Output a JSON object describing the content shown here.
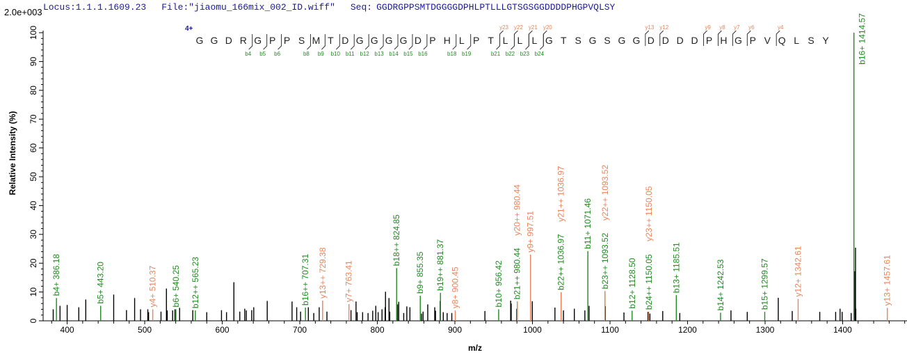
{
  "header": {
    "locus": "Locus:1.1.1.1609.23",
    "file": "File:\"jiaomu_166mix_002_ID.wiff\"",
    "seq_label": "Seq:",
    "seq": "GGDRGPPSMTDGGGGDPHLPTLLLGTSGSGGDDDDPHGPVQLSY"
  },
  "colors": {
    "b_ion": "#1f8a1f",
    "y_ion": "#e8845a",
    "unassigned": "#000000",
    "header": "#1a1a9c"
  },
  "sequence_annotation": {
    "charge": "4+",
    "residues": [
      "G",
      "G",
      "D",
      "R",
      "G",
      "P",
      "P",
      "S",
      "M",
      "T",
      "D",
      "G",
      "G",
      "G",
      "G",
      "D",
      "P",
      "H",
      "L",
      "P",
      "T",
      "L",
      "L",
      "L",
      "G",
      "T",
      "S",
      "G",
      "S",
      "G",
      "G",
      "D",
      "D",
      "D",
      "D",
      "P",
      "H",
      "G",
      "P",
      "V",
      "Q",
      "L",
      "S",
      "Y"
    ],
    "b_ions": [
      4,
      5,
      6,
      8,
      9,
      10,
      11,
      12,
      13,
      14,
      15,
      16,
      18,
      19,
      21,
      22,
      23,
      24
    ],
    "y_ions": [
      23,
      22,
      21,
      20,
      13,
      12,
      9,
      8,
      7,
      6,
      4
    ]
  },
  "chart_data": {
    "type": "bar",
    "scale_label": "2.0e+003",
    "xlabel": "m/z",
    "ylabel": "Relative   Intensity (%)",
    "xlim": [
      369,
      1483
    ],
    "ylim": [
      0,
      100
    ],
    "xticks": [
      400,
      500,
      600,
      700,
      800,
      900,
      1000,
      1100,
      1200,
      1300,
      1400
    ],
    "yticks": [
      0,
      10,
      20,
      30,
      40,
      50,
      60,
      70,
      80,
      90,
      100
    ],
    "labeled_peaks": [
      {
        "mz": 386.18,
        "intensity": 7.9,
        "ion": "b",
        "label": "b4+  386.18"
      },
      {
        "mz": 443.2,
        "intensity": 5.2,
        "ion": "b",
        "label": "b5+  443.20"
      },
      {
        "mz": 510.37,
        "intensity": 4.0,
        "ion": "y",
        "label": "y4+  510.37"
      },
      {
        "mz": 540.25,
        "intensity": 4.0,
        "ion": "b",
        "label": "b6+  540.25"
      },
      {
        "mz": 565.23,
        "intensity": 3.6,
        "ion": "b",
        "label": "b12++  565.23"
      },
      {
        "mz": 707.31,
        "intensity": 4.6,
        "ion": "b",
        "label": "b16++  707.31"
      },
      {
        "mz": 729.38,
        "intensity": 7.0,
        "ion": "y",
        "label": "y13++  729.38"
      },
      {
        "mz": 763.41,
        "intensity": 5.8,
        "ion": "y",
        "label": "y7+  763.41"
      },
      {
        "mz": 824.85,
        "intensity": 18.3,
        "ion": "b",
        "label": "b18++  824.85"
      },
      {
        "mz": 855.35,
        "intensity": 8.7,
        "ion": "b",
        "label": "b9+  855.35"
      },
      {
        "mz": 881.37,
        "intensity": 9.7,
        "ion": "b",
        "label": "b19++  881.37"
      },
      {
        "mz": 900.45,
        "intensity": 3.6,
        "ion": "y",
        "label": "y8+  900.45"
      },
      {
        "mz": 956.42,
        "intensity": 4.0,
        "ion": "b",
        "label": "b10+  956.42"
      },
      {
        "mz": 980.44,
        "intensity": 6.7,
        "ion": "b",
        "label": "b21++  980.44"
      },
      {
        "mz": 980.44,
        "intensity": 6.7,
        "ion": "y",
        "label": "y20++  980.44"
      },
      {
        "mz": 997.51,
        "intensity": 23.0,
        "ion": "y",
        "label": "y9+  997.51"
      },
      {
        "mz": 1036.97,
        "intensity": 9.9,
        "ion": "b",
        "label": "b22++  1036.97"
      },
      {
        "mz": 1036.97,
        "intensity": 9.9,
        "ion": "y",
        "label": "y21++  1036.97"
      },
      {
        "mz": 1071.46,
        "intensity": 24.2,
        "ion": "b",
        "label": "b11+  1071.46"
      },
      {
        "mz": 1093.52,
        "intensity": 10.3,
        "ion": "b",
        "label": "b23++  1093.52"
      },
      {
        "mz": 1093.52,
        "intensity": 10.3,
        "ion": "y",
        "label": "y22++  1093.52"
      },
      {
        "mz": 1128.5,
        "intensity": 3.5,
        "ion": "b",
        "label": "b12+  1128.50"
      },
      {
        "mz": 1150.05,
        "intensity": 3.1,
        "ion": "b",
        "label": "b24++  1150.05"
      },
      {
        "mz": 1150.05,
        "intensity": 3.1,
        "ion": "y",
        "label": "y23++  1150.05"
      },
      {
        "mz": 1185.51,
        "intensity": 8.9,
        "ion": "b",
        "label": "b13+  1185.51"
      },
      {
        "mz": 1242.53,
        "intensity": 2.8,
        "ion": "b",
        "label": "b14+  1242.53"
      },
      {
        "mz": 1299.57,
        "intensity": 3.1,
        "ion": "b",
        "label": "b15+  1299.57"
      },
      {
        "mz": 1342.61,
        "intensity": 7.6,
        "ion": "y",
        "label": "y12+  1342.61"
      },
      {
        "mz": 1414.57,
        "intensity": 100,
        "ion": "b",
        "label": "b16+  1414.57"
      },
      {
        "mz": 1457.61,
        "intensity": 4.5,
        "ion": "y",
        "label": "y13+  1457.61"
      }
    ],
    "unassigned_peaks": [
      [
        382,
        4.0
      ],
      [
        390.8,
        5.2
      ],
      [
        400,
        5.5
      ],
      [
        415,
        4.7
      ],
      [
        424,
        7.4
      ],
      [
        460,
        9.1
      ],
      [
        476.5,
        3.7
      ],
      [
        487,
        7.9
      ],
      [
        494.6,
        4.0
      ],
      [
        504,
        4.0
      ],
      [
        505,
        3.0
      ],
      [
        521,
        3.2
      ],
      [
        528,
        11.2
      ],
      [
        529,
        3.6
      ],
      [
        536,
        3.6
      ],
      [
        539,
        4.0
      ],
      [
        545,
        4.5
      ],
      [
        562,
        3.7
      ],
      [
        580,
        3.0
      ],
      [
        599,
        3.7
      ],
      [
        605.5,
        3.0
      ],
      [
        615,
        13.4
      ],
      [
        622.6,
        3.2
      ],
      [
        629,
        4.2
      ],
      [
        631,
        3.6
      ],
      [
        638,
        3.7
      ],
      [
        640.6,
        4.7
      ],
      [
        658,
        6.9
      ],
      [
        690,
        6.7
      ],
      [
        696,
        4.7
      ],
      [
        701,
        3.2
      ],
      [
        711,
        4.7
      ],
      [
        718,
        2.7
      ],
      [
        725,
        4.7
      ],
      [
        735,
        3.2
      ],
      [
        766,
        3.7
      ],
      [
        772.5,
        6.7
      ],
      [
        774,
        3.0
      ],
      [
        781,
        3.0
      ],
      [
        788,
        2.7
      ],
      [
        794,
        3.5
      ],
      [
        798,
        5.2
      ],
      [
        801,
        3.0
      ],
      [
        806,
        4.0
      ],
      [
        810,
        4.7
      ],
      [
        810.5,
        10.1
      ],
      [
        815,
        7.9
      ],
      [
        816,
        3.2
      ],
      [
        826,
        5.7
      ],
      [
        827.6,
        6.6
      ],
      [
        834,
        2.7
      ],
      [
        838,
        5.0
      ],
      [
        842,
        4.7
      ],
      [
        857,
        2.5
      ],
      [
        859,
        3.2
      ],
      [
        865,
        5.7
      ],
      [
        874,
        4.7
      ],
      [
        875,
        3.5
      ],
      [
        881,
        6.9
      ],
      [
        885,
        3.0
      ],
      [
        890,
        2.7
      ],
      [
        896,
        2.7
      ],
      [
        938.7,
        3.4
      ],
      [
        971.9,
        7.0
      ],
      [
        972.6,
        6.0
      ],
      [
        979.8,
        4.2
      ],
      [
        999.8,
        6.8
      ],
      [
        1029,
        4.6
      ],
      [
        1040,
        3.6
      ],
      [
        1054,
        4.2
      ],
      [
        1067.6,
        3.6
      ],
      [
        1073,
        5.2
      ],
      [
        1094,
        5.1
      ],
      [
        1118,
        2.9
      ],
      [
        1149,
        3.1
      ],
      [
        1151.5,
        2.5
      ],
      [
        1168,
        3.4
      ],
      [
        1190,
        2.7
      ],
      [
        1256,
        3.6
      ],
      [
        1277,
        3.1
      ],
      [
        1317,
        8.0
      ],
      [
        1335,
        3.4
      ],
      [
        1370.5,
        3.1
      ],
      [
        1391,
        3.1
      ],
      [
        1396.7,
        4.2
      ],
      [
        1399.4,
        3.1
      ],
      [
        1411,
        2.7
      ],
      [
        1415.8,
        17.2
      ],
      [
        1416.6,
        25.4
      ],
      [
        1417,
        4.2
      ]
    ]
  }
}
